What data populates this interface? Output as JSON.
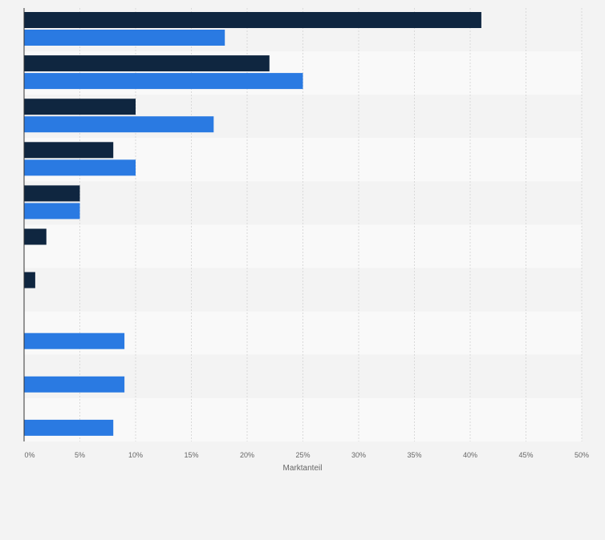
{
  "chart_data": {
    "type": "bar",
    "orientation": "horizontal",
    "categories": [
      "",
      "",
      "",
      "",
      "",
      "",
      "",
      "",
      "",
      ""
    ],
    "series": [
      {
        "color": "#0f2640",
        "values": [
          41,
          22,
          10,
          8,
          5,
          2,
          1,
          0,
          0,
          0
        ]
      },
      {
        "color": "#2a7ae2",
        "values": [
          18,
          25,
          17,
          10,
          5,
          0,
          0,
          9,
          9,
          8
        ]
      }
    ],
    "xlabel": "Marktanteil",
    "ylabel": "",
    "xlim": [
      0,
      50
    ],
    "xticks": [
      0,
      5,
      10,
      15,
      20,
      25,
      30,
      35,
      40,
      45,
      50
    ],
    "tick_suffix": "%",
    "grid": true,
    "row_band_colors": [
      "#f3f3f3",
      "#f9f9f9"
    ],
    "axis_color": "#333333",
    "grid_color": "#d9d9d9"
  }
}
